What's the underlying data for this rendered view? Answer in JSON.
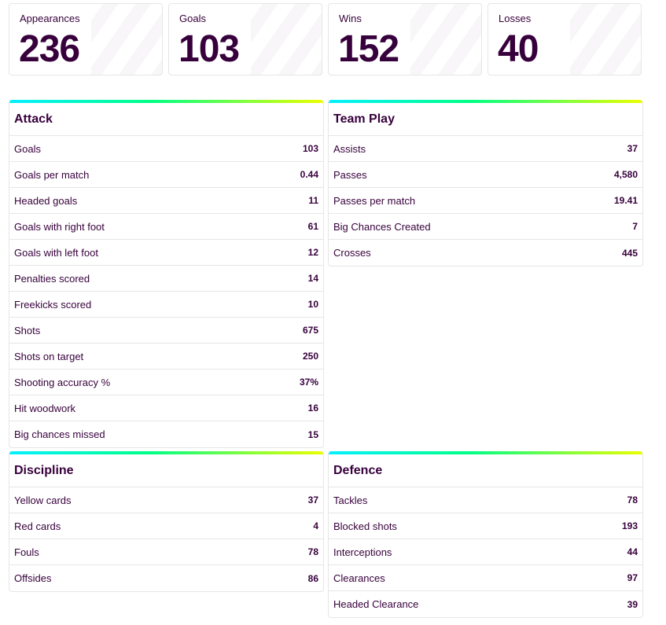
{
  "summary": [
    {
      "label": "Appearances",
      "value": "236"
    },
    {
      "label": "Goals",
      "value": "103"
    },
    {
      "label": "Wins",
      "value": "152"
    },
    {
      "label": "Losses",
      "value": "40"
    }
  ],
  "attack": {
    "title": "Attack",
    "rows": [
      {
        "label": "Goals",
        "value": "103"
      },
      {
        "label": "Goals per match",
        "value": "0.44"
      },
      {
        "label": "Headed goals",
        "value": "11"
      },
      {
        "label": "Goals with right foot",
        "value": "61"
      },
      {
        "label": "Goals with left foot",
        "value": "12"
      },
      {
        "label": "Penalties scored",
        "value": "14"
      },
      {
        "label": "Freekicks scored",
        "value": "10"
      },
      {
        "label": "Shots",
        "value": "675"
      },
      {
        "label": "Shots on target",
        "value": "250"
      },
      {
        "label": "Shooting accuracy %",
        "value": "37%"
      },
      {
        "label": "Hit woodwork",
        "value": "16"
      },
      {
        "label": "Big chances missed",
        "value": "15"
      }
    ]
  },
  "team_play": {
    "title": "Team Play",
    "rows": [
      {
        "label": "Assists",
        "value": "37"
      },
      {
        "label": "Passes",
        "value": "4,580"
      },
      {
        "label": "Passes per match",
        "value": "19.41"
      },
      {
        "label": "Big Chances Created",
        "value": "7"
      },
      {
        "label": "Crosses",
        "value": "445"
      }
    ]
  },
  "discipline": {
    "title": "Discipline",
    "rows": [
      {
        "label": "Yellow cards",
        "value": "37"
      },
      {
        "label": "Red cards",
        "value": "4"
      },
      {
        "label": "Fouls",
        "value": "78"
      },
      {
        "label": "Offsides",
        "value": "86"
      }
    ]
  },
  "defence": {
    "title": "Defence",
    "rows": [
      {
        "label": "Tackles",
        "value": "78"
      },
      {
        "label": "Blocked shots",
        "value": "193"
      },
      {
        "label": "Interceptions",
        "value": "44"
      },
      {
        "label": "Clearances",
        "value": "97"
      },
      {
        "label": "Headed Clearance",
        "value": "39"
      }
    ]
  },
  "colors": {
    "text": "#37003c",
    "border": "#e6e6e6",
    "accent_start": "#05f0ff",
    "accent_mid": "#00ff85",
    "accent_end": "#ebff00"
  }
}
